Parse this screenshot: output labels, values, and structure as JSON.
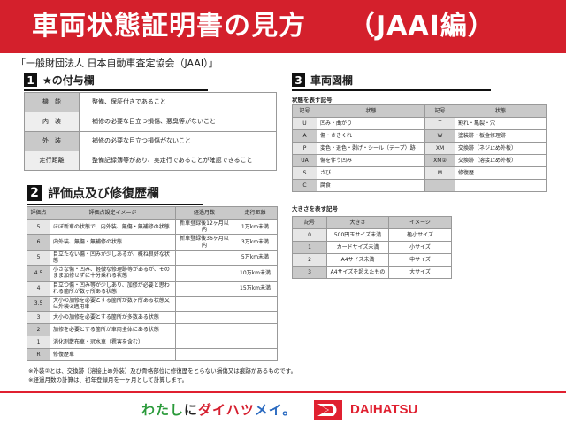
{
  "header": {
    "title": "車両状態証明書の見方",
    "subtitle": "（JAAI編）"
  },
  "organization": "「一般財団法人 日本自動車査定協会（JAAI）」",
  "section1": {
    "num": "1",
    "title": "★の付与欄",
    "rows": [
      {
        "k": "機　能",
        "v": "整備、保証付きであること"
      },
      {
        "k": "内　装",
        "v": "補修の必要な目立つ損傷、悪臭等がないこと"
      },
      {
        "k": "外　装",
        "v": "補修の必要な目立つ損傷がないこと"
      },
      {
        "k": "走行距離",
        "v": "整備記録簿等があり、実走行であることが確認できること"
      }
    ]
  },
  "section2": {
    "num": "2",
    "title": "評価点及び修復歴欄",
    "headers": [
      "評価点",
      "評価点設定イメージ",
      "経過月数",
      "走行距離"
    ],
    "rows": [
      [
        "5",
        "ほぼ新車の状態で、内外装、無傷・無補修の状態",
        "新車登録後12ヶ月以内",
        "1万km未満"
      ],
      [
        "6",
        "内外装、無傷・無補修の状態",
        "新車登録後36ヶ月以内",
        "3万km未満"
      ],
      [
        "5",
        "目立たない傷・凹みが少しあるが、概ね良好な状態",
        "",
        "5万km未満"
      ],
      [
        "4.5",
        "小さな傷・凹み、軽微な修理跡等があるが、そのまま加修せずに十分乗れる状態",
        "",
        "10万km未満"
      ],
      [
        "4",
        "目立つ傷・凹み等が少しあり、加修が必要と思われる箇所が数ヶ所ある状態",
        "",
        "15万km未満"
      ],
      [
        "3.5",
        "大小の加修を必要とする箇所が数ヶ所ある状態又は外装②適用車",
        "",
        ""
      ],
      [
        "3",
        "大小の加修を必要とする箇所が多数ある状態",
        "",
        ""
      ],
      [
        "2",
        "加修を必要とする箇所が車両全体にある状態",
        "",
        ""
      ],
      [
        "1",
        "消化剤散布車・冠水車（雹害を含む）",
        "",
        ""
      ],
      [
        "R",
        "修復歴車",
        "",
        ""
      ]
    ],
    "notes": [
      "※外装②とは、交換跡（溶接止め外装）及び骨格部位に修復歴をとらない損傷又は痕跡があるものです。",
      "※経過月数の計算は、初年登録月を一ヶ月として計算します。"
    ]
  },
  "section3": {
    "num": "3",
    "title": "車両図欄",
    "state_caption": "状態を表す記号",
    "state_headers": [
      "記号",
      "状態",
      "記号",
      "状態"
    ],
    "state_rows": [
      [
        "U",
        "凹み・曲がり",
        "T",
        "割れ・亀裂・穴"
      ],
      [
        "A",
        "傷・さきくれ",
        "W",
        "塗装跡・板金修理跡"
      ],
      [
        "P",
        "変色・退色・剥げ・シール（テープ）跡",
        "XM",
        "交換跡（ネジ止め外板）"
      ],
      [
        "UA",
        "傷を伴う凹み",
        "XM②",
        "交換跡（溶接止め外板）"
      ],
      [
        "S",
        "さび",
        "M",
        "修復歴"
      ],
      [
        "C",
        "腐食",
        "",
        ""
      ]
    ],
    "size_caption": "大きさを表す記号",
    "size_headers": [
      "記号",
      "大きさ",
      "イメージ"
    ],
    "size_rows": [
      [
        "0",
        "500円玉サイズ未満",
        "極小サイズ"
      ],
      [
        "1",
        "カードサイズ未満",
        "小サイズ"
      ],
      [
        "2",
        "A4サイズ未満",
        "中サイズ"
      ],
      [
        "3",
        "A4サイズを超えたもの",
        "大サイズ"
      ]
    ]
  },
  "footer": {
    "slogan": [
      "わたし",
      "に",
      "ダイハツ",
      "メイ。"
    ],
    "brand": "DAIHATSU"
  },
  "colors": {
    "brand_red": "#d4202c"
  }
}
